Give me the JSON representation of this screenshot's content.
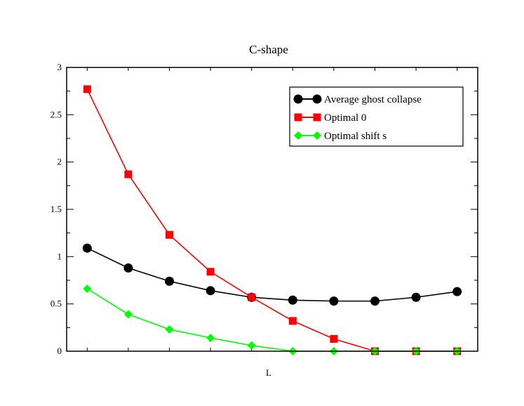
{
  "chart_data": {
    "type": "line",
    "title": "C-shape",
    "xlabel": "L",
    "ylabel": "",
    "x": [
      1,
      2,
      3,
      4,
      5,
      6,
      7,
      8,
      9,
      10
    ],
    "xlim": [
      0.5,
      10.5
    ],
    "ylim": [
      0,
      3
    ],
    "yticks": [
      0,
      0.5,
      1,
      1.5,
      2,
      2.5,
      3
    ],
    "ytick_labels": [
      "0",
      "0.5",
      "1",
      "1.5",
      "2",
      "2.5",
      "3"
    ],
    "grid": false,
    "legend_position": "top-right",
    "series": [
      {
        "name": "Average ghost collapse",
        "color": "#000000",
        "marker": "circle",
        "values": [
          1.09,
          0.88,
          0.74,
          0.64,
          0.57,
          0.54,
          0.53,
          0.53,
          0.57,
          0.63
        ]
      },
      {
        "name": "Optimal 0",
        "color": "#ff0000",
        "marker": "square",
        "values": [
          2.77,
          1.87,
          1.23,
          0.84,
          0.57,
          0.32,
          0.13,
          0.0,
          0.0,
          0.0
        ]
      },
      {
        "name": "Optimal shift s",
        "color": "#00ff00",
        "marker": "diamond",
        "values": [
          0.66,
          0.39,
          0.23,
          0.14,
          0.06,
          0.0,
          0.0,
          0.0,
          0.0,
          0.0
        ]
      }
    ]
  }
}
